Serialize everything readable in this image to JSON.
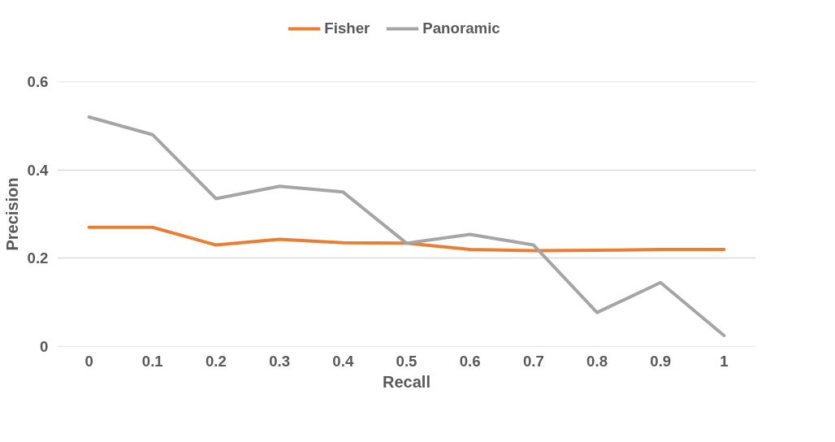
{
  "chart_data": {
    "type": "line",
    "xlabel": "Recall",
    "ylabel": "Precision",
    "categories": [
      "0",
      "0.1",
      "0.2",
      "0.3",
      "0.4",
      "0.5",
      "0.6",
      "0.7",
      "0.8",
      "0.9",
      "1"
    ],
    "series": [
      {
        "name": "Fisher",
        "color": "#ed7d31",
        "values": [
          0.27,
          0.27,
          0.23,
          0.243,
          0.235,
          0.234,
          0.22,
          0.217,
          0.218,
          0.22,
          0.22
        ]
      },
      {
        "name": "Panoramic",
        "color": "#a5a5a5",
        "values": [
          0.52,
          0.48,
          0.335,
          0.363,
          0.35,
          0.234,
          0.254,
          0.23,
          0.077,
          0.145,
          0.025
        ]
      }
    ],
    "ylim": [
      0,
      0.6
    ],
    "yticks": [
      0,
      0.2,
      0.4,
      0.6
    ],
    "grid": "y",
    "legend": "top",
    "marker": "none",
    "line_style": "solid"
  }
}
